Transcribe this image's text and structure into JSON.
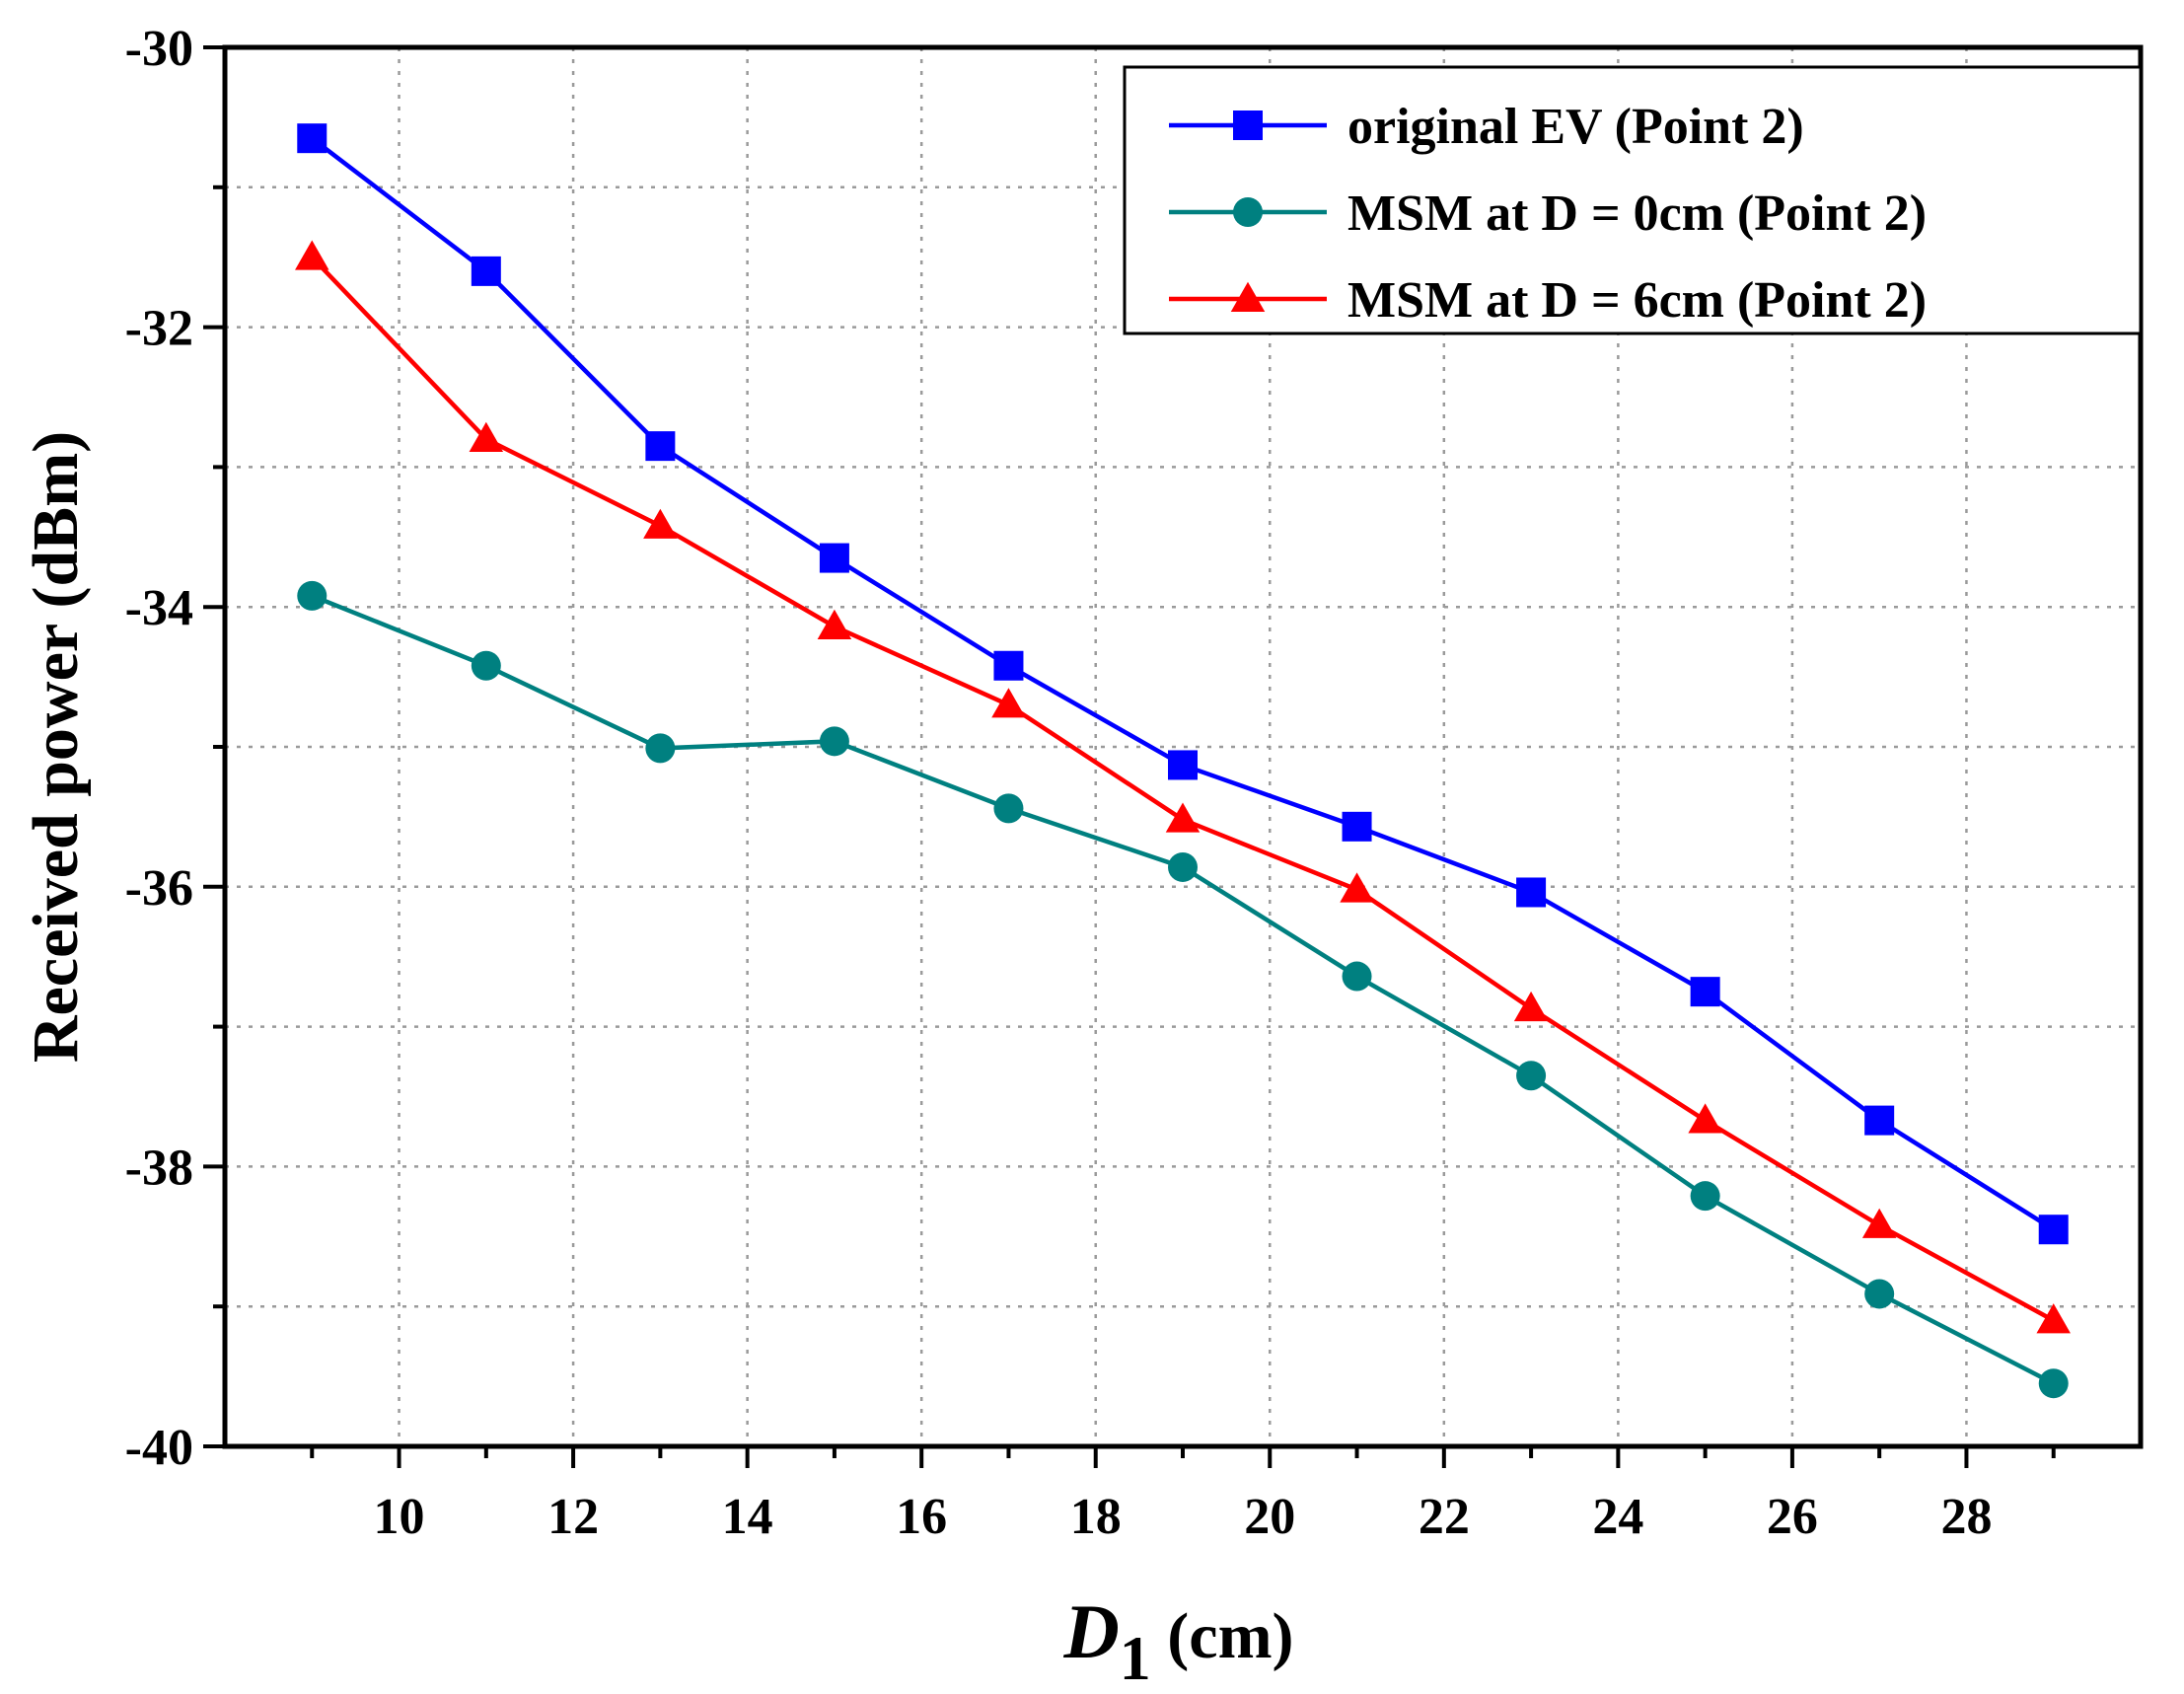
{
  "chart_data": {
    "type": "line",
    "title": "",
    "xlabel": "D",
    "xlabel_subscript": "1",
    "xlabel_unit": " (cm)",
    "ylabel": "Received power (dBm)",
    "xlim": [
      8,
      30
    ],
    "ylim": [
      -40,
      -30
    ],
    "x_ticks": [
      10,
      12,
      14,
      16,
      18,
      20,
      22,
      24,
      26,
      28
    ],
    "y_ticks": [
      -30,
      -32,
      -34,
      -36,
      -38,
      -40
    ],
    "grid": true,
    "legend_position": "top-right",
    "x": [
      9,
      11,
      13,
      15,
      17,
      19,
      21,
      23,
      25,
      27,
      29
    ],
    "series": [
      {
        "name": "original EV (Point 2)",
        "marker": "square",
        "color": "#0000ff",
        "values": [
          -30.65,
          -31.6,
          -32.85,
          -33.65,
          -34.42,
          -35.13,
          -35.57,
          -36.04,
          -36.75,
          -37.67,
          -38.45
        ]
      },
      {
        "name": "MSM at D = 0cm (Point 2)",
        "marker": "circle",
        "color": "#008080",
        "values": [
          -33.92,
          -34.42,
          -35.01,
          -34.96,
          -35.44,
          -35.86,
          -36.64,
          -37.35,
          -38.21,
          -38.91,
          -39.55
        ]
      },
      {
        "name": "MSM at D = 6cm (Point 2)",
        "marker": "triangle",
        "color": "#ff0000",
        "values": [
          -31.5,
          -32.8,
          -33.42,
          -34.14,
          -34.7,
          -35.52,
          -36.02,
          -36.87,
          -37.67,
          -38.42,
          -39.1
        ]
      }
    ]
  }
}
